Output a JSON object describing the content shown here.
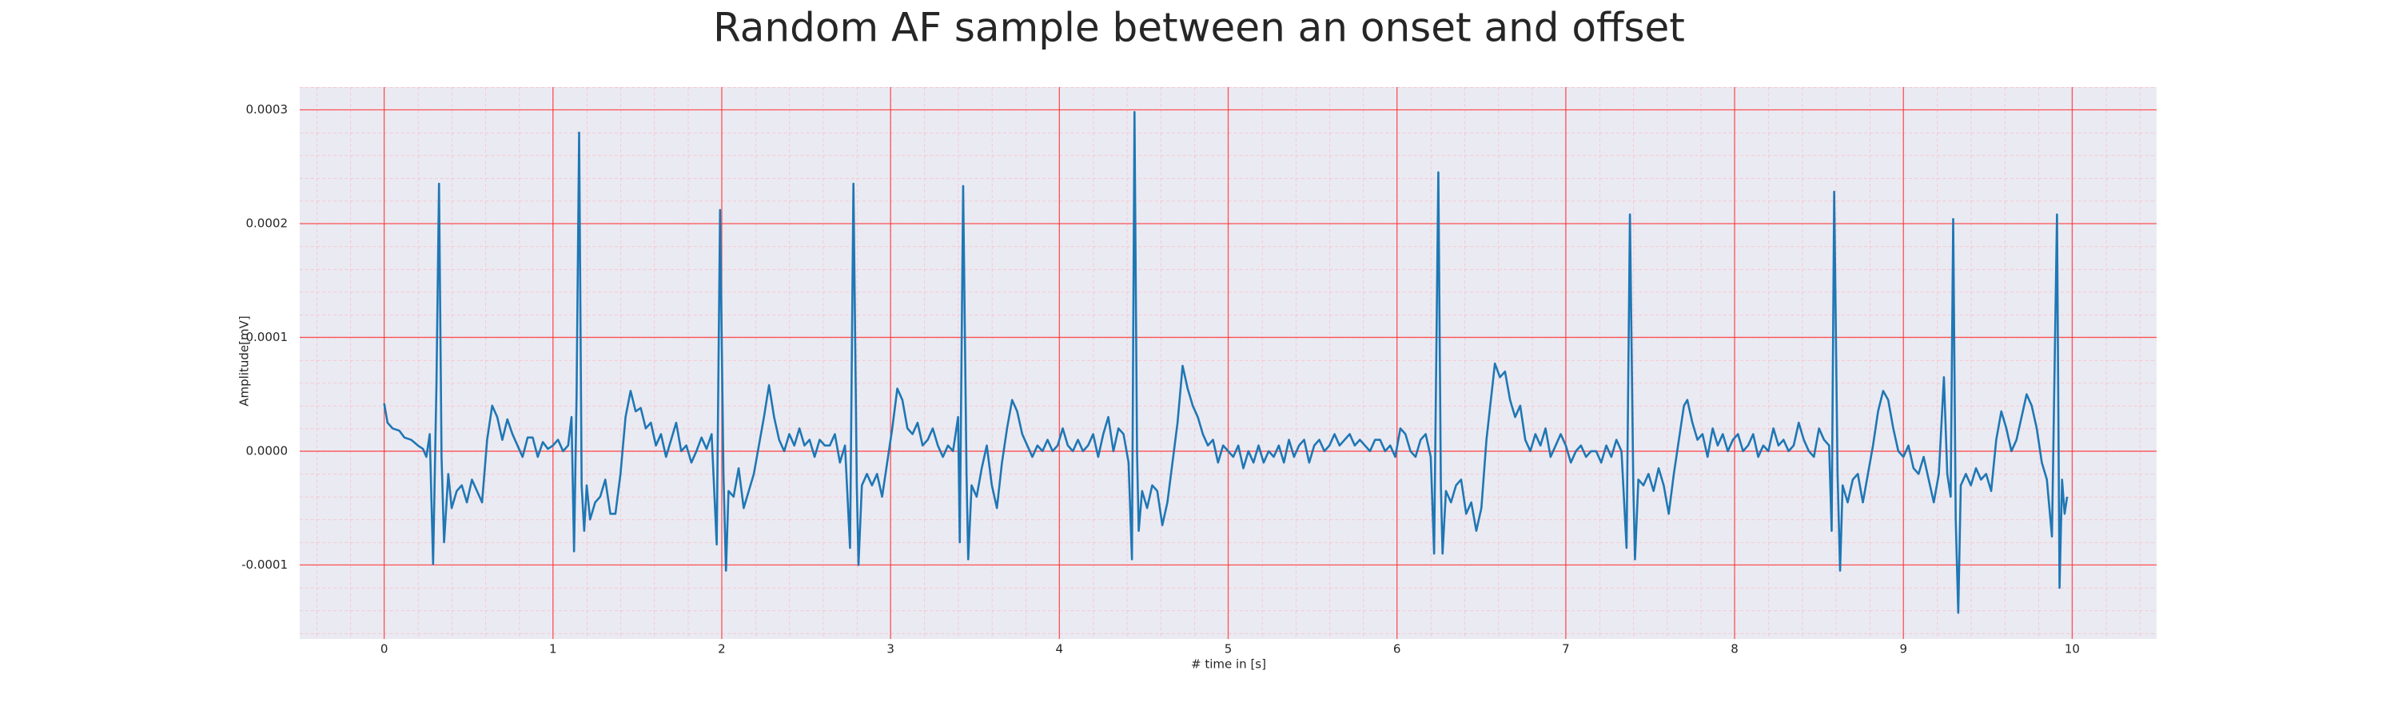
{
  "chart_data": {
    "type": "line",
    "title": "Random AF sample between an onset and offset",
    "x_label": "# time in [s]",
    "y_label": "Amplitude[mV]",
    "color": "#1f77b4",
    "grid": true,
    "minor_grid": true,
    "xlim": [
      -0.5,
      10.5
    ],
    "ylim": [
      -0.000165,
      0.00032
    ],
    "xticks": [
      0,
      1,
      2,
      3,
      4,
      5,
      6,
      7,
      8,
      9,
      10
    ],
    "yticks": [
      -0.0001,
      {
        "value": 0,
        "label": "0.0000"
      },
      0.0001,
      0.0002,
      0.0003
    ],
    "x": [
      0,
      0.02,
      0.05,
      0.09,
      0.12,
      0.16,
      0.2,
      0.23,
      0.25,
      0.27,
      0.29,
      0.31,
      0.325,
      0.34,
      0.355,
      0.38,
      0.4,
      0.43,
      0.46,
      0.49,
      0.52,
      0.55,
      0.58,
      0.61,
      0.64,
      0.67,
      0.7,
      0.73,
      0.76,
      0.79,
      0.82,
      0.85,
      0.88,
      0.91,
      0.94,
      0.97,
      1,
      1.03,
      1.06,
      1.09,
      1.11,
      1.125,
      1.14,
      1.155,
      1.17,
      1.185,
      1.2,
      1.22,
      1.25,
      1.28,
      1.31,
      1.34,
      1.37,
      1.4,
      1.43,
      1.46,
      1.49,
      1.52,
      1.55,
      1.58,
      1.61,
      1.64,
      1.67,
      1.7,
      1.73,
      1.76,
      1.79,
      1.82,
      1.85,
      1.88,
      1.91,
      1.94,
      1.97,
      1.99,
      2.01,
      2.025,
      2.04,
      2.07,
      2.1,
      2.13,
      2.16,
      2.19,
      2.22,
      2.25,
      2.28,
      2.31,
      2.34,
      2.37,
      2.4,
      2.43,
      2.46,
      2.49,
      2.52,
      2.55,
      2.58,
      2.61,
      2.64,
      2.67,
      2.7,
      2.73,
      2.76,
      2.78,
      2.8,
      2.81,
      2.83,
      2.86,
      2.89,
      2.92,
      2.95,
      2.98,
      3.01,
      3.04,
      3.07,
      3.1,
      3.13,
      3.16,
      3.19,
      3.22,
      3.25,
      3.28,
      3.31,
      3.34,
      3.37,
      3.4,
      3.41,
      3.43,
      3.45,
      3.46,
      3.48,
      3.51,
      3.54,
      3.57,
      3.6,
      3.63,
      3.66,
      3.69,
      3.72,
      3.75,
      3.78,
      3.81,
      3.84,
      3.87,
      3.9,
      3.93,
      3.96,
      3.99,
      4.02,
      4.05,
      4.08,
      4.11,
      4.14,
      4.17,
      4.2,
      4.23,
      4.26,
      4.29,
      4.32,
      4.35,
      4.38,
      4.41,
      4.43,
      4.445,
      4.46,
      4.47,
      4.49,
      4.52,
      4.55,
      4.58,
      4.61,
      4.64,
      4.67,
      4.7,
      4.73,
      4.76,
      4.79,
      4.82,
      4.85,
      4.88,
      4.91,
      4.94,
      4.97,
      5,
      5.03,
      5.06,
      5.09,
      5.12,
      5.15,
      5.18,
      5.21,
      5.24,
      5.27,
      5.3,
      5.33,
      5.36,
      5.39,
      5.42,
      5.45,
      5.48,
      5.51,
      5.54,
      5.57,
      5.6,
      5.63,
      5.66,
      5.69,
      5.72,
      5.75,
      5.78,
      5.81,
      5.84,
      5.87,
      5.9,
      5.93,
      5.96,
      5.99,
      6.02,
      6.05,
      6.08,
      6.11,
      6.14,
      6.17,
      6.2,
      6.22,
      6.245,
      6.26,
      6.27,
      6.29,
      6.32,
      6.35,
      6.38,
      6.41,
      6.44,
      6.47,
      6.5,
      6.53,
      6.56,
      6.58,
      6.61,
      6.64,
      6.67,
      6.7,
      6.73,
      6.76,
      6.79,
      6.82,
      6.85,
      6.88,
      6.91,
      6.94,
      6.97,
      7,
      7.03,
      7.06,
      7.09,
      7.12,
      7.15,
      7.18,
      7.21,
      7.24,
      7.27,
      7.3,
      7.33,
      7.36,
      7.38,
      7.4,
      7.41,
      7.43,
      7.46,
      7.49,
      7.52,
      7.55,
      7.58,
      7.61,
      7.64,
      7.67,
      7.7,
      7.72,
      7.75,
      7.78,
      7.81,
      7.84,
      7.87,
      7.9,
      7.93,
      7.96,
      7.99,
      8.02,
      8.05,
      8.08,
      8.11,
      8.14,
      8.17,
      8.2,
      8.23,
      8.26,
      8.29,
      8.32,
      8.35,
      8.38,
      8.41,
      8.44,
      8.47,
      8.5,
      8.53,
      8.56,
      8.575,
      8.59,
      8.61,
      8.625,
      8.64,
      8.67,
      8.7,
      8.73,
      8.76,
      8.79,
      8.82,
      8.85,
      8.88,
      8.91,
      8.94,
      8.97,
      9,
      9.03,
      9.06,
      9.09,
      9.12,
      9.15,
      9.18,
      9.21,
      9.24,
      9.26,
      9.28,
      9.295,
      9.31,
      9.325,
      9.34,
      9.37,
      9.4,
      9.43,
      9.46,
      9.49,
      9.52,
      9.55,
      9.58,
      9.61,
      9.64,
      9.67,
      9.7,
      9.73,
      9.76,
      9.79,
      9.82,
      9.85,
      9.88,
      9.91,
      9.925,
      9.94,
      9.955,
      9.97
    ],
    "values": [
      4.2e-05,
      2.5e-05,
      2e-05,
      1.8e-05,
      1.2e-05,
      1e-05,
      5e-06,
      2e-06,
      -5e-06,
      1.5e-05,
      -9.9e-05,
      6e-05,
      0.000235,
      -5e-06,
      -8e-05,
      -2e-05,
      -5e-05,
      -3.5e-05,
      -3e-05,
      -4.5e-05,
      -2.5e-05,
      -3.5e-05,
      -4.5e-05,
      1e-05,
      4e-05,
      3e-05,
      1e-05,
      2.8e-05,
      1.5e-05,
      5e-06,
      -5e-06,
      1.2e-05,
      1.2e-05,
      -5e-06,
      8e-06,
      2e-06,
      5e-06,
      1e-05,
      0,
      5e-06,
      3e-05,
      -8.8e-05,
      5e-05,
      0.00028,
      -3e-05,
      -7e-05,
      -3e-05,
      -6e-05,
      -4.5e-05,
      -4e-05,
      -2.5e-05,
      -5.5e-05,
      -5.5e-05,
      -2e-05,
      3e-05,
      5.3e-05,
      3.5e-05,
      3.8e-05,
      2e-05,
      2.5e-05,
      5e-06,
      1.5e-05,
      -5e-06,
      1e-05,
      2.5e-05,
      0,
      5e-06,
      -1e-05,
      0,
      1.2e-05,
      2e-06,
      1.5e-05,
      -8.2e-05,
      0.000212,
      -2e-05,
      -0.000105,
      -3.5e-05,
      -4e-05,
      -1.5e-05,
      -5e-05,
      -3.5e-05,
      -2e-05,
      5e-06,
      3e-05,
      5.8e-05,
      3e-05,
      1e-05,
      0,
      1.5e-05,
      5e-06,
      2e-05,
      5e-06,
      1e-05,
      -5e-06,
      1e-05,
      5e-06,
      5e-06,
      1.5e-05,
      -1e-05,
      5e-06,
      -8.5e-05,
      0.000235,
      -3e-05,
      -0.0001,
      -3e-05,
      -2e-05,
      -3e-05,
      -2e-05,
      -4e-05,
      -1e-05,
      2e-05,
      5.5e-05,
      4.5e-05,
      2e-05,
      1.5e-05,
      2.5e-05,
      5e-06,
      1e-05,
      2e-05,
      5e-06,
      -5e-06,
      5e-06,
      0,
      3e-05,
      -8e-05,
      0.000233,
      -2e-05,
      -9.5e-05,
      -3e-05,
      -4e-05,
      -1.5e-05,
      5e-06,
      -3e-05,
      -5e-05,
      -1e-05,
      2e-05,
      4.5e-05,
      3.5e-05,
      1.5e-05,
      5e-06,
      -5e-06,
      5e-06,
      0,
      1e-05,
      0,
      5e-06,
      2e-05,
      5e-06,
      0,
      1e-05,
      0,
      5e-06,
      1.5e-05,
      -5e-06,
      1.5e-05,
      3e-05,
      0,
      2e-05,
      1.5e-05,
      -1e-05,
      -9.5e-05,
      0.000298,
      0,
      -7e-05,
      -3.5e-05,
      -5e-05,
      -3e-05,
      -3.5e-05,
      -6.5e-05,
      -4.5e-05,
      -1e-05,
      2.5e-05,
      7.5e-05,
      5.5e-05,
      4e-05,
      3e-05,
      1.5e-05,
      5e-06,
      1e-05,
      -1e-05,
      5e-06,
      0,
      -5e-06,
      5e-06,
      -1.5e-05,
      0,
      -1e-05,
      5e-06,
      -1e-05,
      0,
      -5e-06,
      5e-06,
      -1e-05,
      1e-05,
      -5e-06,
      5e-06,
      1e-05,
      -1e-05,
      5e-06,
      1e-05,
      0,
      5e-06,
      1.5e-05,
      5e-06,
      1e-05,
      1.5e-05,
      5e-06,
      1e-05,
      5e-06,
      0,
      1e-05,
      1e-05,
      0,
      5e-06,
      -5e-06,
      2e-05,
      1.5e-05,
      0,
      -5e-06,
      1e-05,
      1.5e-05,
      -5e-06,
      -9e-05,
      0.000245,
      -3e-05,
      -9e-05,
      -3.5e-05,
      -4.5e-05,
      -3e-05,
      -2.5e-05,
      -5.5e-05,
      -4.5e-05,
      -7e-05,
      -5e-05,
      1e-05,
      5e-05,
      7.7e-05,
      6.5e-05,
      7e-05,
      4.5e-05,
      3e-05,
      4e-05,
      1e-05,
      0,
      1.5e-05,
      5e-06,
      2e-05,
      -5e-06,
      5e-06,
      1.5e-05,
      5e-06,
      -1e-05,
      0,
      5e-06,
      -5e-06,
      0,
      0,
      -1e-05,
      5e-06,
      -5e-06,
      1e-05,
      0,
      -8.5e-05,
      0.000208,
      -3e-05,
      -9.5e-05,
      -2.5e-05,
      -3e-05,
      -2e-05,
      -3.5e-05,
      -1.5e-05,
      -3e-05,
      -5.5e-05,
      -2e-05,
      1e-05,
      4e-05,
      4.5e-05,
      2.5e-05,
      1e-05,
      1.5e-05,
      -5e-06,
      2e-05,
      5e-06,
      1.5e-05,
      0,
      1e-05,
      1.5e-05,
      0,
      5e-06,
      1.5e-05,
      -5e-06,
      5e-06,
      0,
      2e-05,
      5e-06,
      1e-05,
      0,
      5e-06,
      2.5e-05,
      1e-05,
      0,
      -5e-06,
      2e-05,
      1e-05,
      5e-06,
      -7e-05,
      0.000228,
      -2e-05,
      -0.000105,
      -3e-05,
      -4.5e-05,
      -2.5e-05,
      -2e-05,
      -4.5e-05,
      -2e-05,
      5e-06,
      3.5e-05,
      5.3e-05,
      4.5e-05,
      2e-05,
      0,
      -5e-06,
      5e-06,
      -1.5e-05,
      -2e-05,
      -5e-06,
      -2.5e-05,
      -4.5e-05,
      -2e-05,
      6.5e-05,
      -2e-05,
      -4e-05,
      0.000204,
      -6e-05,
      -0.000142,
      -3e-05,
      -2e-05,
      -3e-05,
      -1.5e-05,
      -2.5e-05,
      -2e-05,
      -3.5e-05,
      1e-05,
      3.5e-05,
      2e-05,
      0,
      1e-05,
      3e-05,
      5e-05,
      4e-05,
      2e-05,
      -1e-05,
      -2.5e-05,
      -7.5e-05,
      0.000208,
      -0.00012,
      -2.5e-05,
      -5.5e-05,
      -4e-05
    ]
  }
}
